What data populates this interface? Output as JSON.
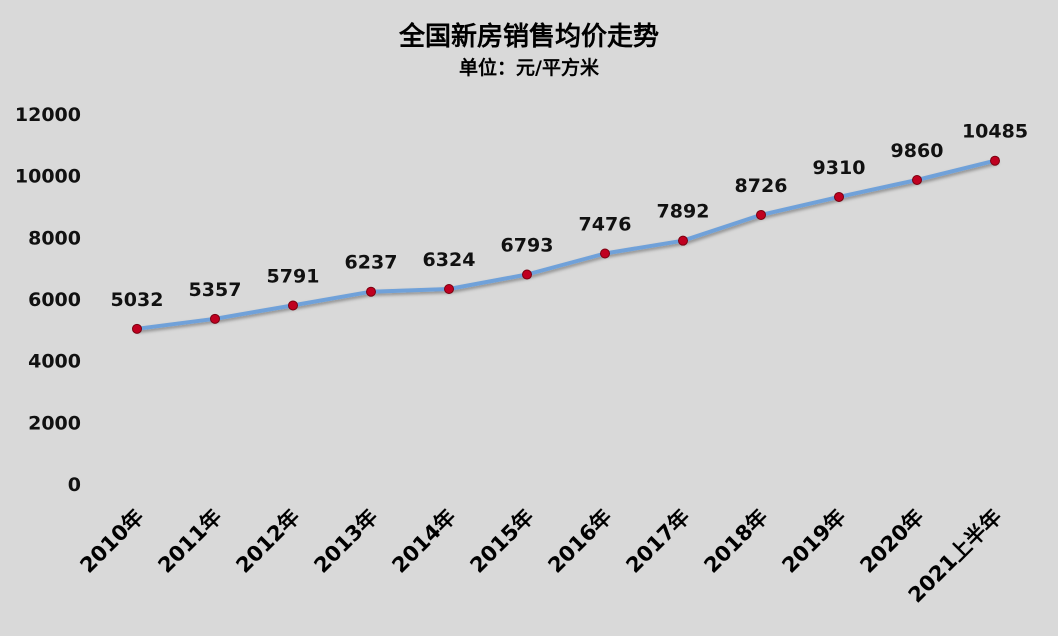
{
  "chart_data": {
    "type": "line",
    "title": "全国新房销售均价走势",
    "subtitle": "单位：元/平方米",
    "categories": [
      "2010年",
      "2011年",
      "2012年",
      "2013年",
      "2014年",
      "2015年",
      "2016年",
      "2017年",
      "2018年",
      "2019年",
      "2020年",
      "2021上半年"
    ],
    "series": [
      {
        "values": [
          5032,
          5357,
          5791,
          6237,
          6324,
          6793,
          7476,
          7892,
          8726,
          9310,
          9860,
          10485
        ]
      }
    ],
    "data_labels": [
      "5032",
      "5357",
      "5791",
      "6237",
      "6324",
      "6793",
      "7476",
      "7892",
      "8726",
      "9310",
      "9860",
      "10485"
    ],
    "yticks": [
      "0",
      "2000",
      "4000",
      "6000",
      "8000",
      "10000",
      "12000"
    ],
    "ylim": [
      0,
      12000
    ],
    "grid": false,
    "legend": "none",
    "colors": {
      "background": "#d9d9d9",
      "line": "#6fa1d9",
      "marker_fill": "#c00020",
      "marker_stroke": "#7a0010"
    }
  }
}
